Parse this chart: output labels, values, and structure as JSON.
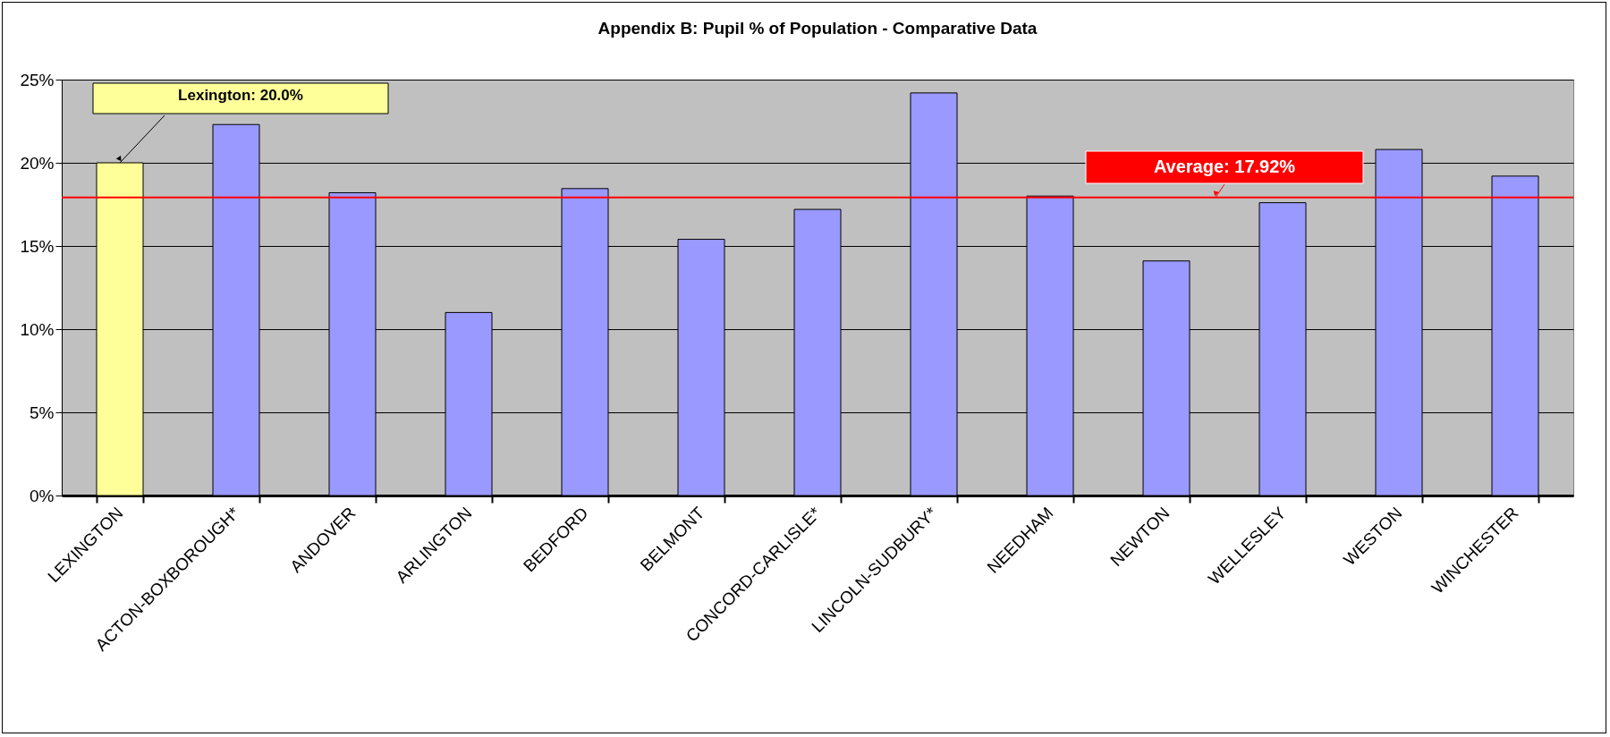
{
  "chart_data": {
    "type": "bar",
    "title": "Appendix B: Pupil % of Population - Comparative Data",
    "categories": [
      "LEXINGTON",
      "ACTON-BOXBOROUGH*",
      "ANDOVER",
      "ARLINGTON",
      "BEDFORD",
      "BELMONT",
      "CONCORD-CARLISLE*",
      "LINCOLN-SUDBURY*",
      "NEEDHAM",
      "NEWTON",
      "WELLESLEY",
      "WESTON",
      "WINCHESTER"
    ],
    "values": [
      20.0,
      22.3,
      18.2,
      11.0,
      18.45,
      15.4,
      17.2,
      24.2,
      18.0,
      14.1,
      17.6,
      20.8,
      19.2
    ],
    "colors": [
      "#ffff99",
      "#9999ff",
      "#9999ff",
      "#9999ff",
      "#9999ff",
      "#9999ff",
      "#9999ff",
      "#9999ff",
      "#9999ff",
      "#9999ff",
      "#9999ff",
      "#9999ff",
      "#9999ff"
    ],
    "ylim": [
      0,
      25
    ],
    "yticks": [
      {
        "value": 0,
        "label": "0%"
      },
      {
        "value": 5,
        "label": "5%"
      },
      {
        "value": 10,
        "label": "10%"
      },
      {
        "value": 15,
        "label": "15%"
      },
      {
        "value": 20,
        "label": "20%"
      },
      {
        "value": 25,
        "label": "25%"
      }
    ],
    "grid": "y",
    "ref_lines": [
      {
        "axis": "y",
        "value": 17.92,
        "label": "Average: 17.92%",
        "color": "#ff0000"
      }
    ],
    "annotations": [
      {
        "text": "Lexington: 20.0%",
        "x": "LEXINGTON",
        "y": 20.0
      }
    ]
  }
}
